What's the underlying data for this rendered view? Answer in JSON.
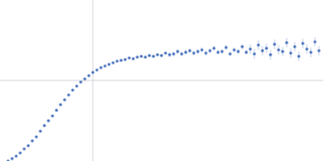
{
  "chart_data": {
    "type": "scatter",
    "color": "#3a66b8",
    "marker": "circle",
    "grid": true,
    "tick_labels": false,
    "xlim": [
      0,
      4
    ],
    "ylim": [
      0,
      2
    ],
    "xticks": [
      1.15
    ],
    "yticks": [
      1
    ],
    "x": [
      0.1,
      0.15,
      0.2,
      0.25,
      0.3,
      0.35,
      0.4,
      0.45,
      0.5,
      0.55,
      0.6,
      0.65,
      0.7,
      0.75,
      0.8,
      0.85,
      0.9,
      0.95,
      1.0,
      1.05,
      1.1,
      1.15,
      1.2,
      1.25,
      1.3,
      1.35,
      1.4,
      1.45,
      1.5,
      1.55,
      1.6,
      1.65,
      1.7,
      1.75,
      1.8,
      1.85,
      1.9,
      1.95,
      2.0,
      2.05,
      2.1,
      2.15,
      2.2,
      2.25,
      2.3,
      2.35,
      2.4,
      2.45,
      2.5,
      2.55,
      2.6,
      2.65,
      2.7,
      2.75,
      2.8,
      2.85,
      2.9,
      2.95,
      3.0,
      3.05,
      3.1,
      3.15,
      3.2,
      3.25,
      3.3,
      3.35,
      3.4,
      3.45,
      3.5,
      3.55,
      3.6,
      3.65,
      3.7,
      3.75,
      3.8,
      3.85,
      3.9,
      3.95
    ],
    "values": [
      0.0,
      0.03,
      0.06,
      0.1,
      0.15,
      0.19,
      0.25,
      0.3,
      0.37,
      0.44,
      0.5,
      0.56,
      0.63,
      0.7,
      0.76,
      0.82,
      0.88,
      0.93,
      0.98,
      1.02,
      1.06,
      1.1,
      1.13,
      1.16,
      1.18,
      1.2,
      1.22,
      1.24,
      1.25,
      1.26,
      1.28,
      1.27,
      1.29,
      1.3,
      1.29,
      1.31,
      1.3,
      1.32,
      1.31,
      1.34,
      1.32,
      1.33,
      1.36,
      1.33,
      1.35,
      1.37,
      1.34,
      1.36,
      1.38,
      1.34,
      1.37,
      1.4,
      1.35,
      1.36,
      1.41,
      1.33,
      1.38,
      1.36,
      1.42,
      1.35,
      1.39,
      1.33,
      1.44,
      1.37,
      1.4,
      1.32,
      1.45,
      1.38,
      1.36,
      1.47,
      1.34,
      1.42,
      1.3,
      1.46,
      1.39,
      1.35,
      1.48,
      1.37
    ],
    "errors": [
      0.005,
      0.005,
      0.005,
      0.005,
      0.005,
      0.005,
      0.005,
      0.005,
      0.005,
      0.005,
      0.005,
      0.005,
      0.005,
      0.005,
      0.005,
      0.005,
      0.005,
      0.005,
      0.005,
      0.005,
      0.01,
      0.01,
      0.01,
      0.01,
      0.01,
      0.01,
      0.01,
      0.01,
      0.01,
      0.01,
      0.01,
      0.01,
      0.01,
      0.01,
      0.01,
      0.01,
      0.01,
      0.01,
      0.01,
      0.01,
      0.03,
      0.03,
      0.03,
      0.03,
      0.03,
      0.03,
      0.03,
      0.03,
      0.03,
      0.03,
      0.03,
      0.03,
      0.03,
      0.03,
      0.03,
      0.03,
      0.03,
      0.03,
      0.03,
      0.03,
      0.06,
      0.06,
      0.06,
      0.06,
      0.06,
      0.06,
      0.06,
      0.06,
      0.06,
      0.06,
      0.06,
      0.06,
      0.06,
      0.06,
      0.06,
      0.06,
      0.06,
      0.06
    ]
  }
}
